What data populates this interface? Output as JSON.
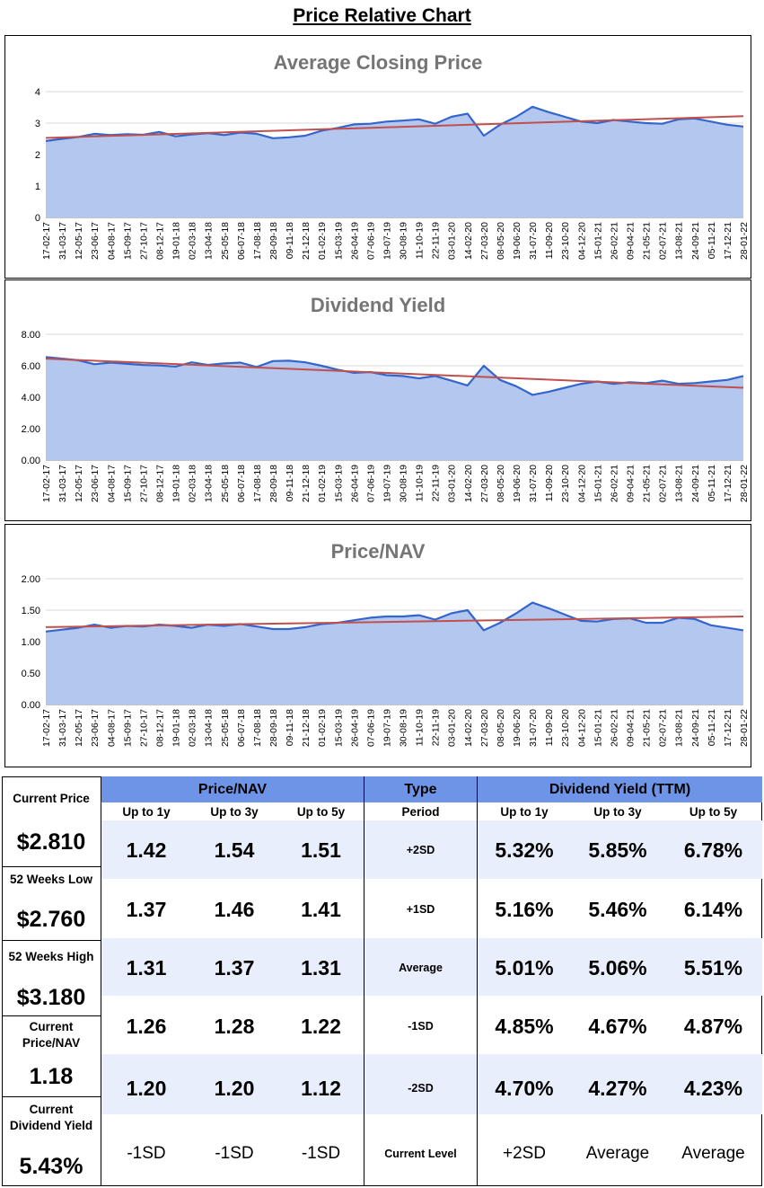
{
  "page_title": "Price Relative Chart",
  "x_labels": [
    "17-02-17",
    "31-03-17",
    "12-05-17",
    "23-06-17",
    "04-08-17",
    "15-09-17",
    "27-10-17",
    "08-12-17",
    "19-01-18",
    "02-03-18",
    "13-04-18",
    "25-05-18",
    "06-07-18",
    "17-08-18",
    "28-09-18",
    "09-11-18",
    "21-12-18",
    "01-02-19",
    "15-03-19",
    "26-04-19",
    "07-06-19",
    "19-07-19",
    "30-08-19",
    "11-10-19",
    "22-11-19",
    "03-01-20",
    "14-02-20",
    "27-03-20",
    "08-05-20",
    "19-06-20",
    "31-07-20",
    "11-09-20",
    "23-10-20",
    "04-12-20",
    "15-01-21",
    "26-02-21",
    "09-04-21",
    "21-05-21",
    "02-07-21",
    "13-08-21",
    "24-09-21",
    "05-11-21",
    "17-12-21",
    "28-01-22"
  ],
  "chart_data": [
    {
      "type": "area",
      "title": "Average Closing Price",
      "ylim": [
        0,
        4
      ],
      "yticks": [
        "0",
        "1",
        "2",
        "3",
        "4"
      ],
      "ytick_values": [
        0,
        1,
        2,
        3,
        4
      ],
      "values": [
        2.43,
        2.5,
        2.56,
        2.66,
        2.62,
        2.65,
        2.63,
        2.72,
        2.58,
        2.64,
        2.68,
        2.62,
        2.7,
        2.66,
        2.52,
        2.55,
        2.6,
        2.76,
        2.85,
        2.96,
        2.98,
        3.05,
        3.08,
        3.12,
        2.98,
        3.2,
        3.3,
        2.6,
        2.95,
        3.2,
        3.52,
        3.35,
        3.2,
        3.05,
        3.0,
        3.1,
        3.05,
        3.0,
        2.98,
        3.12,
        3.15,
        3.05,
        2.95,
        2.89
      ],
      "trend": [
        2.53,
        3.22
      ],
      "colors": {
        "area": "#b4c7ef",
        "line": "#3366cc",
        "trend": "#c0504d"
      }
    },
    {
      "type": "area",
      "title": "Dividend Yield",
      "ylim": [
        0,
        8
      ],
      "yticks": [
        "0.00",
        "2.00",
        "4.00",
        "6.00",
        "8.00"
      ],
      "ytick_values": [
        0,
        2,
        4,
        6,
        8
      ],
      "values": [
        6.55,
        6.45,
        6.35,
        6.1,
        6.2,
        6.12,
        6.05,
        6.02,
        5.95,
        6.22,
        6.05,
        6.15,
        6.2,
        5.92,
        6.3,
        6.32,
        6.22,
        6.0,
        5.75,
        5.55,
        5.6,
        5.4,
        5.35,
        5.2,
        5.35,
        5.05,
        4.75,
        6.0,
        5.1,
        4.7,
        4.15,
        4.35,
        4.6,
        4.85,
        5.0,
        4.85,
        4.95,
        4.9,
        5.05,
        4.85,
        4.9,
        5.0,
        5.1,
        5.35
      ],
      "trend": [
        6.45,
        4.6
      ],
      "colors": {
        "area": "#b4c7ef",
        "line": "#3366cc",
        "trend": "#c0504d"
      }
    },
    {
      "type": "area",
      "title": "Price/NAV",
      "ylim": [
        0,
        2
      ],
      "yticks": [
        "0.00",
        "0.50",
        "1.00",
        "1.50",
        "2.00"
      ],
      "ytick_values": [
        0,
        0.5,
        1,
        1.5,
        2
      ],
      "values": [
        1.16,
        1.19,
        1.22,
        1.27,
        1.22,
        1.25,
        1.24,
        1.27,
        1.25,
        1.22,
        1.27,
        1.25,
        1.28,
        1.24,
        1.2,
        1.2,
        1.23,
        1.28,
        1.3,
        1.34,
        1.38,
        1.4,
        1.4,
        1.42,
        1.35,
        1.45,
        1.5,
        1.18,
        1.3,
        1.45,
        1.62,
        1.53,
        1.43,
        1.33,
        1.32,
        1.36,
        1.37,
        1.3,
        1.3,
        1.38,
        1.36,
        1.26,
        1.22,
        1.18
      ],
      "trend": [
        1.23,
        1.4
      ],
      "colors": {
        "area": "#b4c7ef",
        "line": "#3366cc",
        "trend": "#c0504d"
      }
    }
  ],
  "stats": {
    "current_price_label": "Current Price",
    "current_price": "$2.810",
    "low_label": "52 Weeks Low",
    "low": "$2.760",
    "high_label": "52 Weeks High",
    "high": "$3.180",
    "cur_pnav_label": "Current Price/NAV",
    "cur_pnav": "1.18",
    "cur_dy_label": "Current Dividend Yield",
    "cur_dy": "5.43%"
  },
  "table": {
    "pnav_header": "Price/NAV",
    "type_header": "Type",
    "dy_header": "Dividend Yield (TTM)",
    "periods": [
      "Up to 1y",
      "Up to 3y",
      "Up to 5y"
    ],
    "period_label": "Period",
    "rows": [
      {
        "label": "+2SD",
        "pnav": [
          "1.42",
          "1.54",
          "1.51"
        ],
        "dy": [
          "5.32%",
          "5.85%",
          "6.78%"
        ]
      },
      {
        "label": "+1SD",
        "pnav": [
          "1.37",
          "1.46",
          "1.41"
        ],
        "dy": [
          "5.16%",
          "5.46%",
          "6.14%"
        ]
      },
      {
        "label": "Average",
        "pnav": [
          "1.31",
          "1.37",
          "1.31"
        ],
        "dy": [
          "5.01%",
          "5.06%",
          "5.51%"
        ]
      },
      {
        "label": "-1SD",
        "pnav": [
          "1.26",
          "1.28",
          "1.22"
        ],
        "dy": [
          "4.85%",
          "4.67%",
          "4.87%"
        ]
      },
      {
        "label": "-2SD",
        "pnav": [
          "1.20",
          "1.20",
          "1.12"
        ],
        "dy": [
          "4.70%",
          "4.27%",
          "4.23%"
        ]
      }
    ],
    "current_level_label": "Current Level",
    "current_level_pnav": [
      "-1SD",
      "-1SD",
      "-1SD"
    ],
    "current_level_dy": [
      "+2SD",
      "Average",
      "Average"
    ]
  }
}
